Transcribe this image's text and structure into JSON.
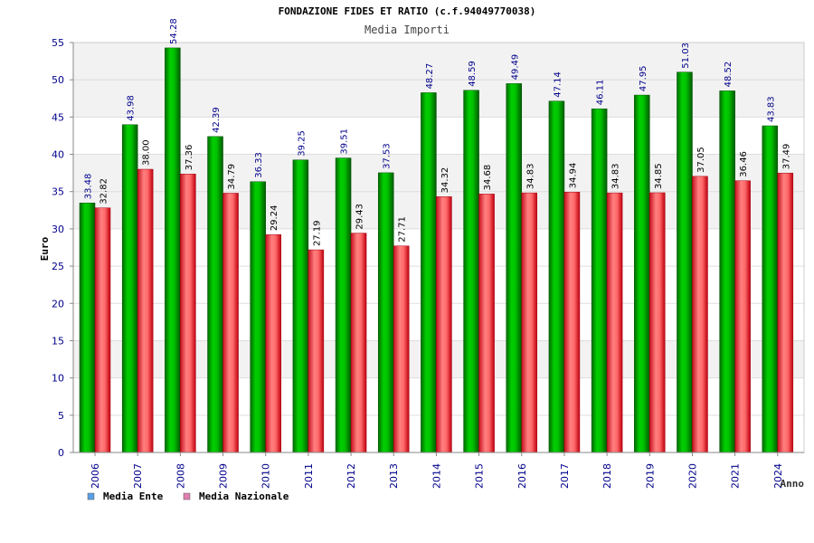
{
  "chart_data": {
    "type": "bar",
    "title": "FONDAZIONE FIDES ET RATIO (c.f.94049770038)",
    "subtitle": "Media Importi",
    "xlabel": "Anno",
    "ylabel": "Euro",
    "ylim": [
      0,
      55
    ],
    "yticks": [
      0,
      5,
      10,
      15,
      20,
      25,
      30,
      35,
      40,
      45,
      50,
      55
    ],
    "grid": true,
    "legend_position": "bottom-left",
    "categories": [
      "2006",
      "2007",
      "2008",
      "2009",
      "2010",
      "2011",
      "2012",
      "2013",
      "2014",
      "2015",
      "2016",
      "2017",
      "2018",
      "2019",
      "2020",
      "2021",
      "2024"
    ],
    "series": [
      {
        "name": "Media Ente",
        "values": [
          33.48,
          43.98,
          54.28,
          42.39,
          36.33,
          39.25,
          39.51,
          37.53,
          48.27,
          48.59,
          49.49,
          47.14,
          46.11,
          47.95,
          51.03,
          48.52,
          43.83
        ],
        "labels": [
          "33.48",
          "43.98",
          "54.28",
          "42.39",
          "36.33",
          "39.25",
          "39.51",
          "37.53",
          "48.27",
          "48.59",
          "49.49",
          "47.14",
          "46.11",
          "47.95",
          "51.03",
          "48.52",
          "43.83"
        ]
      },
      {
        "name": "Media Nazionale",
        "values": [
          32.82,
          38.0,
          37.36,
          34.79,
          29.24,
          27.19,
          29.43,
          27.71,
          34.32,
          34.68,
          34.83,
          34.94,
          34.83,
          34.85,
          37.05,
          36.46,
          37.49
        ],
        "labels": [
          "32.82",
          "38.00",
          "37.36",
          "34.79",
          "29.24",
          "27.19",
          "29.43",
          "27.71",
          "34.32",
          "34.68",
          "34.83",
          "34.94",
          "34.83",
          "34.85",
          "37.05",
          "36.46",
          "37.49"
        ]
      }
    ]
  },
  "colors": {
    "ente_bar": "#00c000",
    "ente_dark": "#006400",
    "naz_bar": "#ff6060",
    "naz_dark": "#c00000",
    "legend_ente": "#5aa0e6",
    "legend_naz": "#e080b0",
    "axis_text": "#00008b",
    "band": "#f2f2f2"
  }
}
